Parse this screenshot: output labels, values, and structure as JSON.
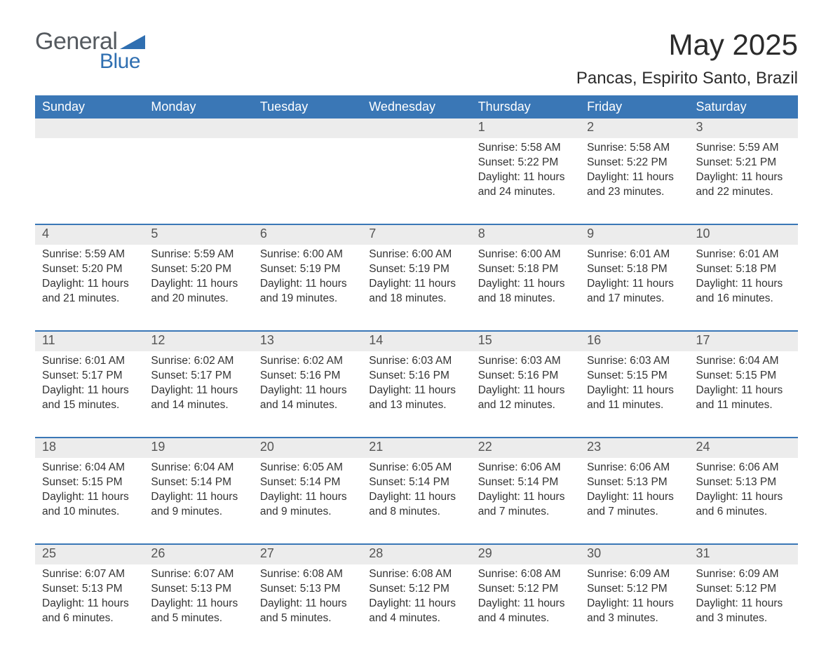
{
  "brand": {
    "word1": "General",
    "word2": "Blue",
    "tri_color": "#2f6fb1",
    "word1_color": "#555a5f",
    "word2_color": "#2f6fb1"
  },
  "title": "May 2025",
  "location": "Pancas, Espirito Santo, Brazil",
  "colors": {
    "header_bg": "#3a77b6",
    "header_text": "#ffffff",
    "daynum_bg": "#ececec",
    "daynum_text": "#555555",
    "body_text": "#333333",
    "row_border": "#3a77b6",
    "page_bg": "#ffffff"
  },
  "day_headers": [
    "Sunday",
    "Monday",
    "Tuesday",
    "Wednesday",
    "Thursday",
    "Friday",
    "Saturday"
  ],
  "weeks": [
    [
      {
        "n": "",
        "sunrise": "",
        "sunset": "",
        "daylight": ""
      },
      {
        "n": "",
        "sunrise": "",
        "sunset": "",
        "daylight": ""
      },
      {
        "n": "",
        "sunrise": "",
        "sunset": "",
        "daylight": ""
      },
      {
        "n": "",
        "sunrise": "",
        "sunset": "",
        "daylight": ""
      },
      {
        "n": "1",
        "sunrise": "Sunrise: 5:58 AM",
        "sunset": "Sunset: 5:22 PM",
        "daylight": "Daylight: 11 hours and 24 minutes."
      },
      {
        "n": "2",
        "sunrise": "Sunrise: 5:58 AM",
        "sunset": "Sunset: 5:22 PM",
        "daylight": "Daylight: 11 hours and 23 minutes."
      },
      {
        "n": "3",
        "sunrise": "Sunrise: 5:59 AM",
        "sunset": "Sunset: 5:21 PM",
        "daylight": "Daylight: 11 hours and 22 minutes."
      }
    ],
    [
      {
        "n": "4",
        "sunrise": "Sunrise: 5:59 AM",
        "sunset": "Sunset: 5:20 PM",
        "daylight": "Daylight: 11 hours and 21 minutes."
      },
      {
        "n": "5",
        "sunrise": "Sunrise: 5:59 AM",
        "sunset": "Sunset: 5:20 PM",
        "daylight": "Daylight: 11 hours and 20 minutes."
      },
      {
        "n": "6",
        "sunrise": "Sunrise: 6:00 AM",
        "sunset": "Sunset: 5:19 PM",
        "daylight": "Daylight: 11 hours and 19 minutes."
      },
      {
        "n": "7",
        "sunrise": "Sunrise: 6:00 AM",
        "sunset": "Sunset: 5:19 PM",
        "daylight": "Daylight: 11 hours and 18 minutes."
      },
      {
        "n": "8",
        "sunrise": "Sunrise: 6:00 AM",
        "sunset": "Sunset: 5:18 PM",
        "daylight": "Daylight: 11 hours and 18 minutes."
      },
      {
        "n": "9",
        "sunrise": "Sunrise: 6:01 AM",
        "sunset": "Sunset: 5:18 PM",
        "daylight": "Daylight: 11 hours and 17 minutes."
      },
      {
        "n": "10",
        "sunrise": "Sunrise: 6:01 AM",
        "sunset": "Sunset: 5:18 PM",
        "daylight": "Daylight: 11 hours and 16 minutes."
      }
    ],
    [
      {
        "n": "11",
        "sunrise": "Sunrise: 6:01 AM",
        "sunset": "Sunset: 5:17 PM",
        "daylight": "Daylight: 11 hours and 15 minutes."
      },
      {
        "n": "12",
        "sunrise": "Sunrise: 6:02 AM",
        "sunset": "Sunset: 5:17 PM",
        "daylight": "Daylight: 11 hours and 14 minutes."
      },
      {
        "n": "13",
        "sunrise": "Sunrise: 6:02 AM",
        "sunset": "Sunset: 5:16 PM",
        "daylight": "Daylight: 11 hours and 14 minutes."
      },
      {
        "n": "14",
        "sunrise": "Sunrise: 6:03 AM",
        "sunset": "Sunset: 5:16 PM",
        "daylight": "Daylight: 11 hours and 13 minutes."
      },
      {
        "n": "15",
        "sunrise": "Sunrise: 6:03 AM",
        "sunset": "Sunset: 5:16 PM",
        "daylight": "Daylight: 11 hours and 12 minutes."
      },
      {
        "n": "16",
        "sunrise": "Sunrise: 6:03 AM",
        "sunset": "Sunset: 5:15 PM",
        "daylight": "Daylight: 11 hours and 11 minutes."
      },
      {
        "n": "17",
        "sunrise": "Sunrise: 6:04 AM",
        "sunset": "Sunset: 5:15 PM",
        "daylight": "Daylight: 11 hours and 11 minutes."
      }
    ],
    [
      {
        "n": "18",
        "sunrise": "Sunrise: 6:04 AM",
        "sunset": "Sunset: 5:15 PM",
        "daylight": "Daylight: 11 hours and 10 minutes."
      },
      {
        "n": "19",
        "sunrise": "Sunrise: 6:04 AM",
        "sunset": "Sunset: 5:14 PM",
        "daylight": "Daylight: 11 hours and 9 minutes."
      },
      {
        "n": "20",
        "sunrise": "Sunrise: 6:05 AM",
        "sunset": "Sunset: 5:14 PM",
        "daylight": "Daylight: 11 hours and 9 minutes."
      },
      {
        "n": "21",
        "sunrise": "Sunrise: 6:05 AM",
        "sunset": "Sunset: 5:14 PM",
        "daylight": "Daylight: 11 hours and 8 minutes."
      },
      {
        "n": "22",
        "sunrise": "Sunrise: 6:06 AM",
        "sunset": "Sunset: 5:14 PM",
        "daylight": "Daylight: 11 hours and 7 minutes."
      },
      {
        "n": "23",
        "sunrise": "Sunrise: 6:06 AM",
        "sunset": "Sunset: 5:13 PM",
        "daylight": "Daylight: 11 hours and 7 minutes."
      },
      {
        "n": "24",
        "sunrise": "Sunrise: 6:06 AM",
        "sunset": "Sunset: 5:13 PM",
        "daylight": "Daylight: 11 hours and 6 minutes."
      }
    ],
    [
      {
        "n": "25",
        "sunrise": "Sunrise: 6:07 AM",
        "sunset": "Sunset: 5:13 PM",
        "daylight": "Daylight: 11 hours and 6 minutes."
      },
      {
        "n": "26",
        "sunrise": "Sunrise: 6:07 AM",
        "sunset": "Sunset: 5:13 PM",
        "daylight": "Daylight: 11 hours and 5 minutes."
      },
      {
        "n": "27",
        "sunrise": "Sunrise: 6:08 AM",
        "sunset": "Sunset: 5:13 PM",
        "daylight": "Daylight: 11 hours and 5 minutes."
      },
      {
        "n": "28",
        "sunrise": "Sunrise: 6:08 AM",
        "sunset": "Sunset: 5:12 PM",
        "daylight": "Daylight: 11 hours and 4 minutes."
      },
      {
        "n": "29",
        "sunrise": "Sunrise: 6:08 AM",
        "sunset": "Sunset: 5:12 PM",
        "daylight": "Daylight: 11 hours and 4 minutes."
      },
      {
        "n": "30",
        "sunrise": "Sunrise: 6:09 AM",
        "sunset": "Sunset: 5:12 PM",
        "daylight": "Daylight: 11 hours and 3 minutes."
      },
      {
        "n": "31",
        "sunrise": "Sunrise: 6:09 AM",
        "sunset": "Sunset: 5:12 PM",
        "daylight": "Daylight: 11 hours and 3 minutes."
      }
    ]
  ]
}
